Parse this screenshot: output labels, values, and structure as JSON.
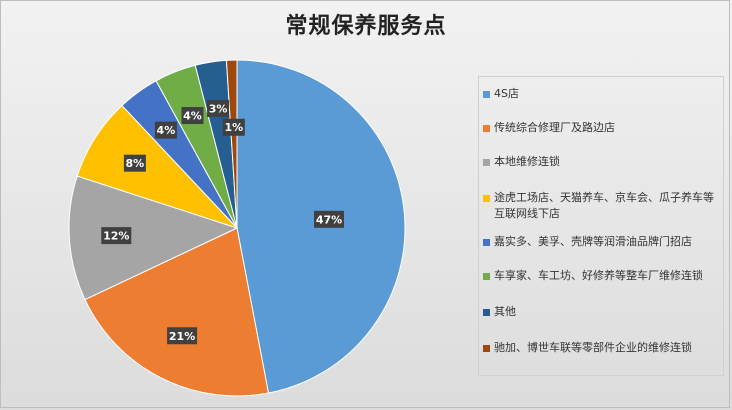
{
  "chart_data": {
    "type": "pie",
    "title": "常规保养服务点",
    "categories": [
      "4S店",
      "传统综合修理厂及路边店",
      "本地维修连锁",
      "途虎工场店、天猫养车、京车会、瓜子养车等互联网线下店",
      "嘉实多、美孚、壳牌等润滑油品牌门招店",
      "车享家、车工坊、好修养等整车厂维修连锁",
      "其他",
      "驰加、博世车联等零部件企业的维修连锁"
    ],
    "values": [
      47,
      21,
      12,
      8,
      4,
      4,
      3,
      1
    ],
    "data_labels": [
      "47%",
      "21%",
      "12%",
      "8%",
      "4%",
      "4%",
      "3%",
      "1%"
    ],
    "colors": [
      "#5B9BD5",
      "#ED7D31",
      "#A5A5A5",
      "#FFC000",
      "#4472C4",
      "#70AD47",
      "#255E91",
      "#9E480E"
    ],
    "legend_position": "right"
  }
}
